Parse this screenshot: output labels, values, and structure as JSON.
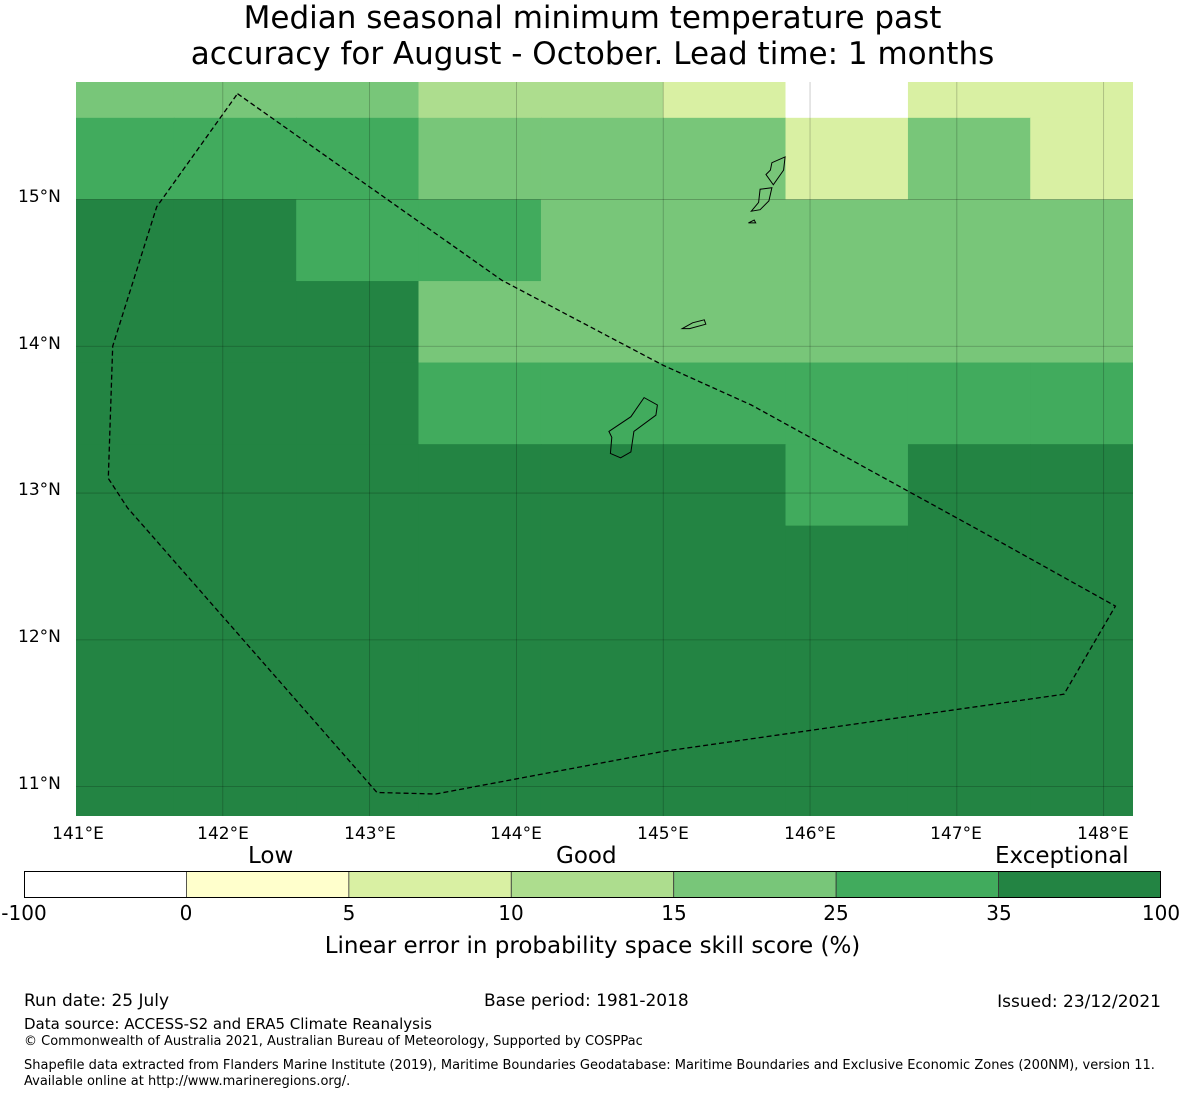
{
  "title_line1": "Median seasonal minimum temperature past",
  "title_line2": "accuracy for August - October. Lead time: 1 months",
  "map": {
    "lon_range": [
      141.0,
      148.2
    ],
    "lat_range": [
      10.8,
      15.8
    ],
    "lat_labels": [
      "11°N",
      "12°N",
      "13°N",
      "14°N",
      "15°N"
    ],
    "lon_labels": [
      "141°E",
      "142°E",
      "143°E",
      "144°E",
      "145°E",
      "146°E",
      "147°E",
      "148°E"
    ],
    "grid_lons": [
      142,
      143,
      144,
      145,
      146,
      147,
      148
    ],
    "grid_lats": [
      11,
      12,
      13,
      14,
      15
    ],
    "cell_lon_edges": [
      141.0,
      141.667,
      142.5,
      143.333,
      144.167,
      145.0,
      145.833,
      146.667,
      147.5,
      148.2
    ],
    "cell_lat_edges": [
      15.8,
      15.556,
      15.0,
      14.444,
      13.889,
      13.333,
      12.778,
      10.8
    ],
    "grid": [
      [
        4,
        4,
        4,
        3,
        3,
        2,
        0,
        2,
        2
      ],
      [
        5,
        5,
        5,
        4,
        4,
        4,
        2,
        4,
        2
      ],
      [
        6,
        6,
        5,
        5,
        4,
        4,
        4,
        4,
        4
      ],
      [
        6,
        6,
        6,
        4,
        4,
        4,
        4,
        4,
        4
      ],
      [
        6,
        6,
        6,
        5,
        5,
        5,
        5,
        5,
        5
      ],
      [
        6,
        6,
        6,
        6,
        6,
        6,
        5,
        6,
        6
      ],
      [
        6,
        6,
        6,
        6,
        6,
        6,
        6,
        6,
        6
      ]
    ],
    "boundary": [
      [
        142.1,
        15.72
      ],
      [
        143.9,
        14.45
      ],
      [
        145.0,
        13.87
      ],
      [
        145.6,
        13.6
      ],
      [
        147.2,
        12.72
      ],
      [
        148.08,
        12.23
      ],
      [
        147.73,
        11.63
      ],
      [
        145.0,
        11.24
      ],
      [
        143.45,
        10.95
      ],
      [
        143.05,
        10.96
      ],
      [
        141.35,
        12.9
      ],
      [
        141.22,
        13.1
      ],
      [
        141.25,
        14.0
      ],
      [
        141.55,
        14.95
      ],
      [
        142.1,
        15.72
      ]
    ],
    "islands": [
      [
        [
          144.63,
          13.42
        ],
        [
          144.78,
          13.52
        ],
        [
          144.87,
          13.65
        ],
        [
          144.96,
          13.6
        ],
        [
          144.95,
          13.53
        ],
        [
          144.8,
          13.42
        ],
        [
          144.78,
          13.28
        ],
        [
          144.71,
          13.24
        ],
        [
          144.64,
          13.27
        ],
        [
          144.65,
          13.38
        ],
        [
          144.63,
          13.42
        ]
      ],
      [
        [
          145.13,
          14.12
        ],
        [
          145.2,
          14.16
        ],
        [
          145.28,
          14.18
        ],
        [
          145.29,
          14.15
        ],
        [
          145.18,
          14.12
        ],
        [
          145.13,
          14.12
        ]
      ],
      [
        [
          145.6,
          14.92
        ],
        [
          145.65,
          14.98
        ],
        [
          145.66,
          15.07
        ],
        [
          145.74,
          15.08
        ],
        [
          145.72,
          14.99
        ],
        [
          145.66,
          14.93
        ],
        [
          145.6,
          14.92
        ]
      ],
      [
        [
          145.58,
          14.84
        ],
        [
          145.62,
          14.86
        ],
        [
          145.63,
          14.84
        ],
        [
          145.58,
          14.84
        ]
      ],
      [
        [
          145.7,
          15.17
        ],
        [
          145.73,
          15.2
        ],
        [
          145.74,
          15.25
        ],
        [
          145.83,
          15.29
        ],
        [
          145.82,
          15.2
        ],
        [
          145.75,
          15.1
        ],
        [
          145.7,
          15.17
        ]
      ]
    ]
  },
  "colorbar": {
    "colors": [
      "#ffffff",
      "#ffffcc",
      "#d9f0a3",
      "#addd8e",
      "#78c679",
      "#41ab5d",
      "#238443"
    ],
    "ticks": [
      "-100",
      "0",
      "5",
      "10",
      "15",
      "25",
      "35",
      "100"
    ],
    "categories": [
      "Low",
      "Good",
      "Exceptional"
    ],
    "label": "Linear error in probability space skill score (%)"
  },
  "footer": {
    "run_date": "Run date: 25 July",
    "base_period": "Base period: 1981-2018",
    "issued": "Issued: 23/12/2021",
    "data_source": "Data source: ACCESS-S2 and ERA5 Climate Reanalysis",
    "copyright": "© Commonwealth of Australia 2021, Australian Bureau of Meteorology, Supported by COSPPac",
    "shapefile": "Shapefile data extracted from Flanders Marine Institute (2019), Maritime Boundaries Geodatabase: Maritime Boundaries and Exclusive Economic Zones (200NM), version 11. Available online at http://www.marineregions.org/."
  }
}
